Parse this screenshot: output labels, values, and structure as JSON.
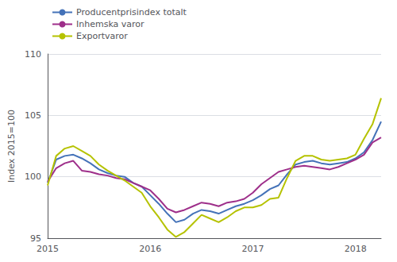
{
  "chart_data": {
    "type": "line",
    "ylabel": "Index 2015=100",
    "categories": [
      "2015",
      null,
      null,
      null,
      null,
      null,
      null,
      null,
      null,
      null,
      null,
      null,
      "2016",
      null,
      null,
      null,
      null,
      null,
      null,
      null,
      null,
      null,
      null,
      null,
      "2017",
      null,
      null,
      null,
      null,
      null,
      null,
      null,
      null,
      null,
      null,
      null,
      "2018",
      null,
      null,
      null
    ],
    "series": [
      {
        "name": "Producentprisindex totalt",
        "color": "#4472b8",
        "values": [
          99.5,
          101.4,
          101.7,
          101.8,
          101.5,
          101.1,
          100.6,
          100.3,
          100.1,
          100.0,
          99.5,
          99.2,
          98.5,
          97.8,
          97.0,
          96.3,
          96.5,
          97.0,
          97.3,
          97.2,
          97.0,
          97.3,
          97.6,
          97.8,
          98.1,
          98.5,
          99.0,
          99.3,
          100.2,
          101.0,
          101.2,
          101.3,
          101.1,
          101.0,
          101.1,
          101.2,
          101.5,
          102.0,
          103.0,
          104.5
        ]
      },
      {
        "name": "Inhemska varor",
        "color": "#9e2f8a",
        "values": [
          99.6,
          100.7,
          101.1,
          101.3,
          100.5,
          100.4,
          100.2,
          100.1,
          99.9,
          99.8,
          99.5,
          99.2,
          98.9,
          98.2,
          97.4,
          97.1,
          97.3,
          97.6,
          97.9,
          97.8,
          97.6,
          97.9,
          98.0,
          98.2,
          98.7,
          99.4,
          99.9,
          100.4,
          100.6,
          100.8,
          100.9,
          100.8,
          100.7,
          100.6,
          100.8,
          101.1,
          101.4,
          101.8,
          102.8,
          103.2
        ]
      },
      {
        "name": "Exportvaror",
        "color": "#b5c200",
        "values": [
          99.3,
          101.7,
          102.3,
          102.5,
          102.1,
          101.7,
          101.0,
          100.5,
          100.1,
          99.7,
          99.2,
          98.7,
          97.6,
          96.7,
          95.7,
          95.1,
          95.5,
          96.2,
          96.9,
          96.6,
          96.3,
          96.7,
          97.2,
          97.5,
          97.5,
          97.7,
          98.2,
          98.3,
          99.9,
          101.3,
          101.7,
          101.7,
          101.4,
          101.3,
          101.4,
          101.5,
          101.8,
          103.1,
          104.3,
          106.4
        ]
      }
    ],
    "ylim": [
      95,
      110
    ],
    "yticks": [
      95,
      100,
      105,
      110
    ],
    "grid": true,
    "legend": "upper left"
  }
}
